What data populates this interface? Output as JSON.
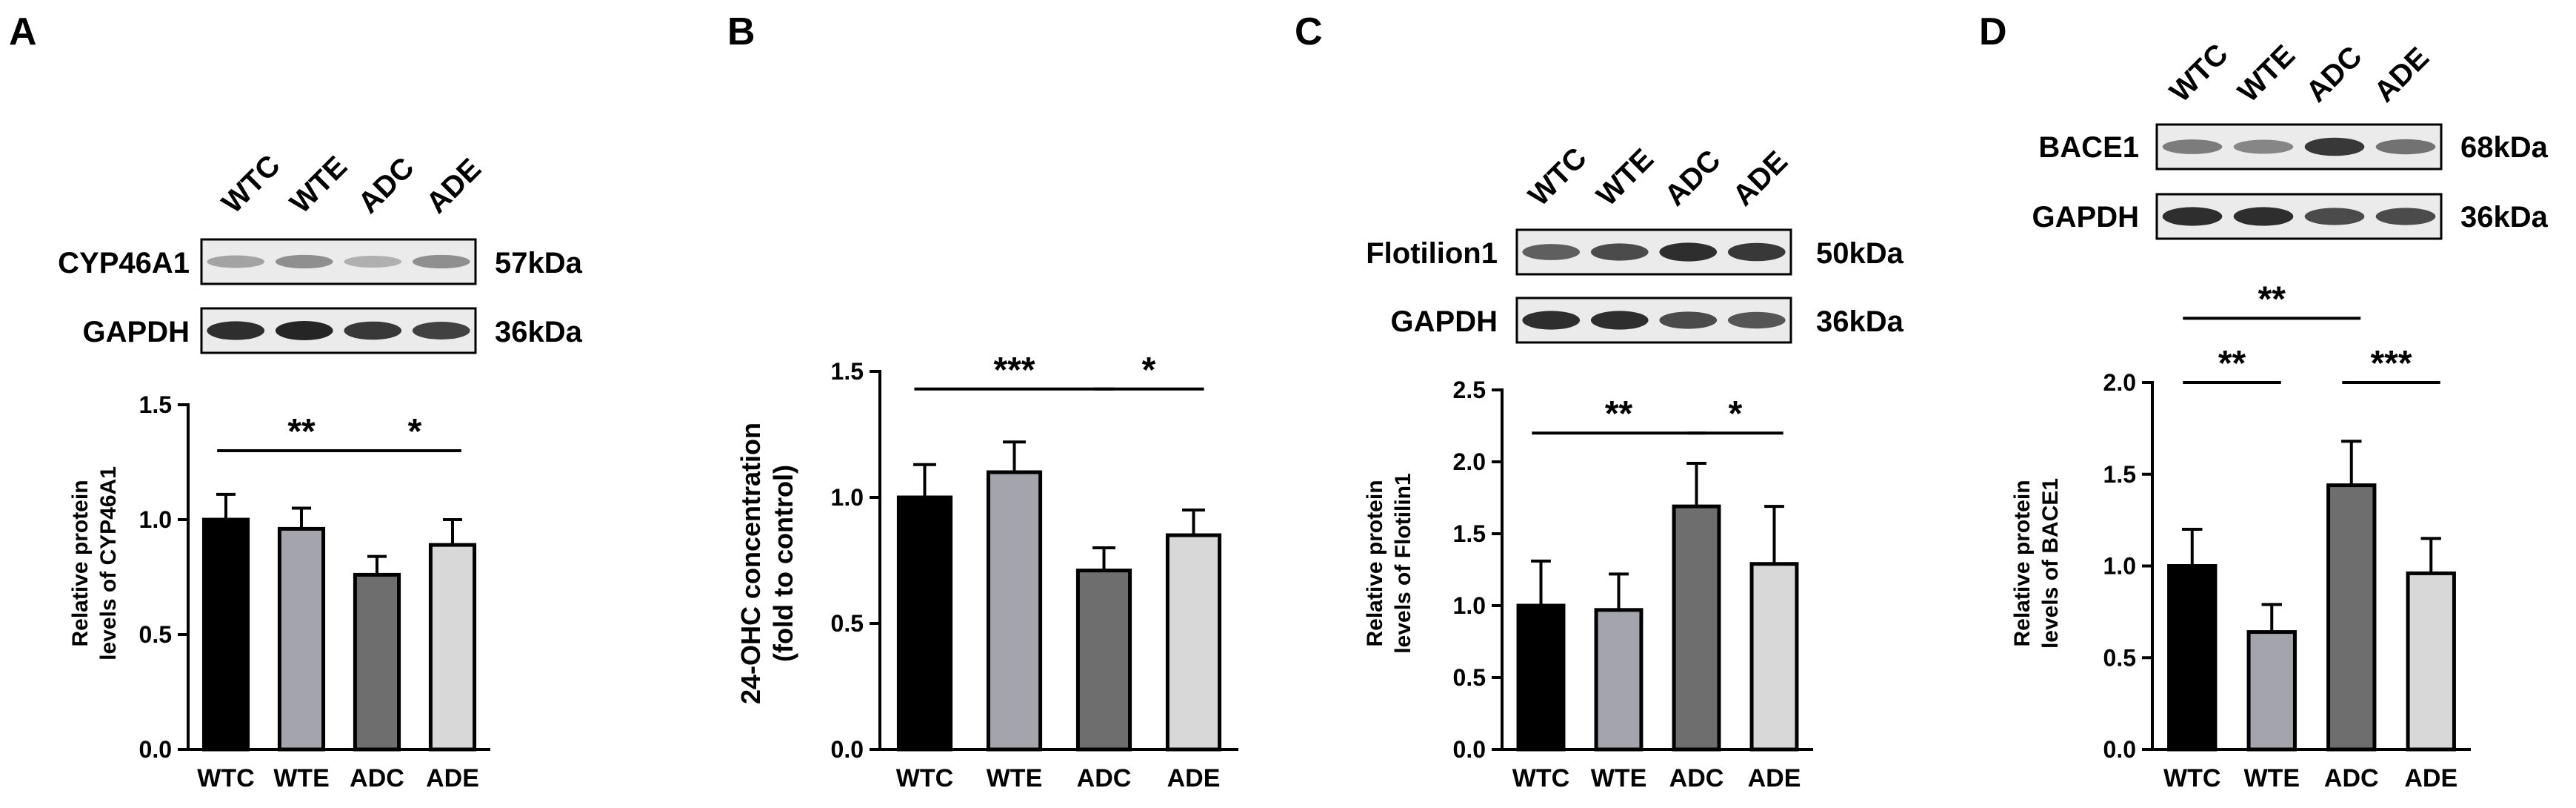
{
  "figure": {
    "panels": [
      {
        "letter": "A",
        "blot": {
          "lanes": [
            "WTC",
            "WTE",
            "ADC",
            "ADE"
          ],
          "rows": [
            {
              "protein": "CYP46A1",
              "size": "57kDa",
              "intensity": [
                0.35,
                0.45,
                0.28,
                0.45
              ]
            },
            {
              "protein": "GAPDH",
              "size": "36kDa",
              "intensity": [
                0.95,
                1.0,
                0.9,
                0.85
              ]
            }
          ]
        }
      },
      {
        "letter": "B",
        "blot": null
      },
      {
        "letter": "C",
        "blot": {
          "lanes": [
            "WTC",
            "WTE",
            "ADC",
            "ADE"
          ],
          "rows": [
            {
              "protein": "Flotilion1",
              "size": "50kDa",
              "intensity": [
                0.7,
                0.8,
                0.95,
                0.9
              ]
            },
            {
              "protein": "GAPDH",
              "size": "36kDa",
              "intensity": [
                0.95,
                0.95,
                0.8,
                0.75
              ]
            }
          ]
        }
      },
      {
        "letter": "D",
        "blot": {
          "lanes": [
            "WTC",
            "WTE",
            "ADC",
            "ADE"
          ],
          "rows": [
            {
              "protein": "BACE1",
              "size": "68kDa",
              "intensity": [
                0.55,
                0.5,
                0.9,
                0.6
              ]
            },
            {
              "protein": "GAPDH",
              "size": "36kDa",
              "intensity": [
                0.95,
                0.95,
                0.8,
                0.8
              ]
            }
          ]
        }
      }
    ]
  },
  "chart_data": [
    {
      "type": "bar",
      "panel": "A",
      "categories": [
        "WTC",
        "WTE",
        "ADC",
        "ADE"
      ],
      "values": [
        1.0,
        0.96,
        0.76,
        0.89
      ],
      "errors": [
        0.11,
        0.09,
        0.08,
        0.11
      ],
      "colors": [
        "#000000",
        "#a4a4ac",
        "#6e6e6e",
        "#d8d8d8"
      ],
      "ylabel": [
        "Relative protein",
        "levels of CYP46A1"
      ],
      "ylim": [
        0,
        1.5
      ],
      "yticks": [
        "0.0",
        "0.5",
        "1.0",
        "1.5"
      ],
      "significance": [
        {
          "from": 0,
          "to": 2,
          "label": "**",
          "y": 1.3
        },
        {
          "from": 2,
          "to": 3,
          "label": "*",
          "y": 1.3
        }
      ]
    },
    {
      "type": "bar",
      "panel": "B",
      "categories": [
        "WTC",
        "WTE",
        "ADC",
        "ADE"
      ],
      "values": [
        1.0,
        1.1,
        0.71,
        0.85
      ],
      "errors": [
        0.13,
        0.12,
        0.09,
        0.1
      ],
      "colors": [
        "#000000",
        "#a4a4ac",
        "#6e6e6e",
        "#d8d8d8"
      ],
      "ylabel": [
        "24-OHC concentration",
        "(fold to control)"
      ],
      "ylim": [
        0,
        1.5
      ],
      "yticks": [
        "0.0",
        "0.5",
        "1.0",
        "1.5"
      ],
      "significance": [
        {
          "from": 0,
          "to": 2,
          "label": "***",
          "y": 1.43
        },
        {
          "from": 2,
          "to": 3,
          "label": "*",
          "y": 1.43
        }
      ]
    },
    {
      "type": "bar",
      "panel": "C",
      "categories": [
        "WTC",
        "WTE",
        "ADC",
        "ADE"
      ],
      "values": [
        1.0,
        0.97,
        1.69,
        1.29
      ],
      "errors": [
        0.31,
        0.25,
        0.3,
        0.4
      ],
      "colors": [
        "#000000",
        "#a4a4ac",
        "#6e6e6e",
        "#d8d8d8"
      ],
      "ylabel": [
        "Relative protein",
        "levels of Flotilin1"
      ],
      "ylim": [
        0,
        2.5
      ],
      "yticks": [
        "0.0",
        "0.5",
        "1.0",
        "1.5",
        "2.0",
        "2.5"
      ],
      "significance": [
        {
          "from": 0,
          "to": 2,
          "label": "**",
          "y": 2.2
        },
        {
          "from": 2,
          "to": 3,
          "label": "*",
          "y": 2.2
        }
      ]
    },
    {
      "type": "bar",
      "panel": "D",
      "categories": [
        "WTC",
        "WTE",
        "ADC",
        "ADE"
      ],
      "values": [
        1.0,
        0.64,
        1.44,
        0.96
      ],
      "errors": [
        0.2,
        0.15,
        0.24,
        0.19
      ],
      "colors": [
        "#000000",
        "#a4a4ac",
        "#6e6e6e",
        "#d8d8d8"
      ],
      "ylabel": [
        "Relative protein",
        "levels of BACE1"
      ],
      "ylim": [
        0,
        2.0
      ],
      "yticks": [
        "0.0",
        "0.5",
        "1.0",
        "1.5",
        "2.0"
      ],
      "significance": [
        {
          "from": 0,
          "to": 2,
          "label": "**",
          "y": 2.35
        },
        {
          "from": 0,
          "to": 1,
          "label": "**",
          "y": 2.0
        },
        {
          "from": 2,
          "to": 3,
          "label": "***",
          "y": 2.0
        }
      ]
    }
  ]
}
